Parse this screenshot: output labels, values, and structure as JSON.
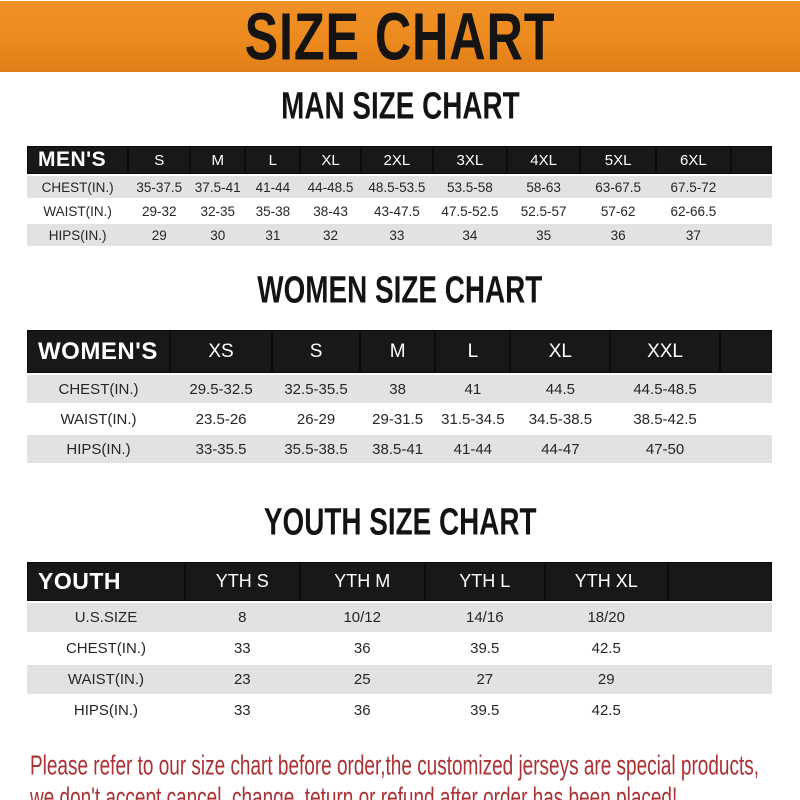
{
  "banner": {
    "title": "SIZE CHART",
    "bg_color": "#EC8A1E",
    "text_color": "#161413"
  },
  "sections": [
    {
      "title": "MAN SIZE CHART",
      "header_label": "MEN'S",
      "columns": [
        "S",
        "M",
        "L",
        "XL",
        "2XL",
        "3XL",
        "4XL",
        "5XL",
        "6XL"
      ],
      "rows": [
        {
          "label": "CHEST(IN.)",
          "values": [
            "35-37.5",
            "37.5-41",
            "41-44",
            "44-48.5",
            "48.5-53.5",
            "53.5-58",
            "58-63",
            "63-67.5",
            "67.5-72"
          ]
        },
        {
          "label": "WAIST(IN.)",
          "values": [
            "29-32",
            "32-35",
            "35-38",
            "38-43",
            "43-47.5",
            "47.5-52.5",
            "52.5-57",
            "57-62",
            "62-66.5"
          ]
        },
        {
          "label": "HIPS(IN.)",
          "values": [
            "29",
            "30",
            "31",
            "32",
            "33",
            "34",
            "35",
            "36",
            "37"
          ]
        }
      ]
    },
    {
      "title": "WOMEN SIZE CHART",
      "header_label": "WOMEN'S",
      "columns": [
        "XS",
        "S",
        "M",
        "L",
        "XL",
        "XXL"
      ],
      "rows": [
        {
          "label": "CHEST(IN.)",
          "values": [
            "29.5-32.5",
            "32.5-35.5",
            "38",
            "41",
            "44.5",
            "44.5-48.5"
          ]
        },
        {
          "label": "WAIST(IN.)",
          "values": [
            "23.5-26",
            "26-29",
            "29-31.5",
            "31.5-34.5",
            "34.5-38.5",
            "38.5-42.5"
          ]
        },
        {
          "label": "HIPS(IN.)",
          "values": [
            "33-35.5",
            "35.5-38.5",
            "38.5-41",
            "41-44",
            "44-47",
            "47-50"
          ]
        }
      ]
    },
    {
      "title": "YOUTH SIZE CHART",
      "header_label": "YOUTH",
      "columns": [
        "YTH S",
        "YTH M",
        "YTH L",
        "YTH XL"
      ],
      "rows": [
        {
          "label": "U.S.SIZE",
          "values": [
            "8",
            "10/12",
            "14/16",
            "18/20"
          ]
        },
        {
          "label": "CHEST(IN.)",
          "values": [
            "33",
            "36",
            "39.5",
            "42.5"
          ]
        },
        {
          "label": "WAIST(IN.)",
          "values": [
            "23",
            "25",
            "27",
            "29"
          ]
        },
        {
          "label": "HIPS(IN.)",
          "values": [
            "33",
            "36",
            "39.5",
            "42.5"
          ]
        }
      ]
    }
  ],
  "footer": {
    "line1": "Please refer to our size chart before order,the customized jerseys are special products,",
    "line2": "we don't accept cancel, change, teturn or refund after order has been placed!"
  },
  "colors": {
    "banner_orange": "#EC8A1E",
    "header_bar_black": "#1A1817",
    "row_shade_gray": "#E2E2E1",
    "disclaimer_red": "#AC3134"
  }
}
